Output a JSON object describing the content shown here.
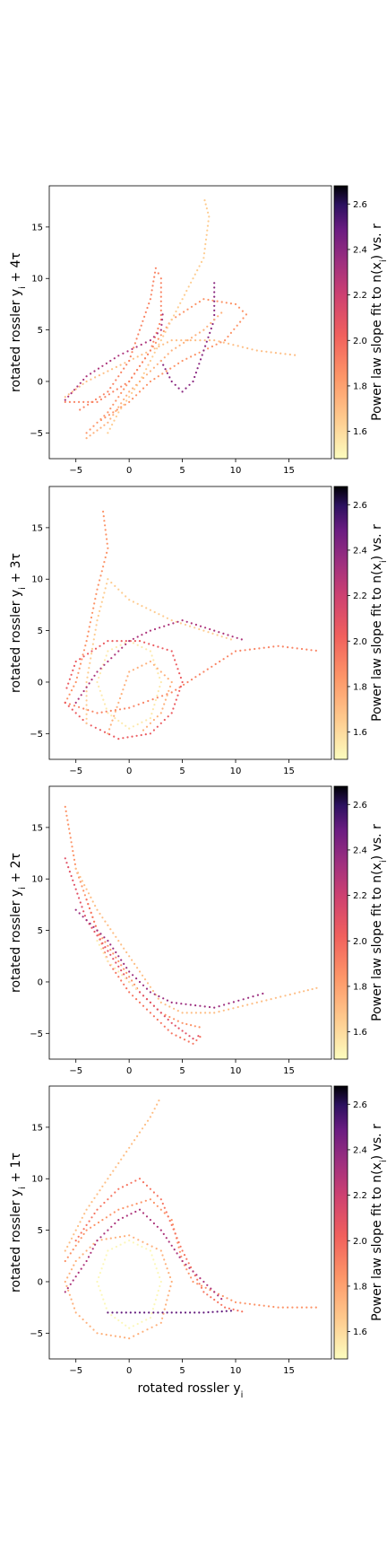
{
  "chart_data": [
    {
      "type": "scatter",
      "xlabel": "",
      "ylabel": "rotated rossler y_i + 4τ",
      "xlim": [
        -7.5,
        19
      ],
      "ylim": [
        -7.5,
        19
      ],
      "xticks": [
        -5,
        0,
        5,
        10,
        15
      ],
      "yticks": [
        -5,
        0,
        5,
        10,
        15
      ],
      "colorbar": {
        "label": "Power law slope fit to n(x_i) vs. r",
        "ticks": [
          1.6,
          1.8,
          2.0,
          2.2,
          2.4,
          2.6
        ],
        "range": [
          1.48,
          2.68
        ],
        "colormap": "magma_r"
      },
      "series": [
        {
          "curve": [
            [
              -6,
              -1.5
            ],
            [
              -4,
              0
            ],
            [
              0,
              2
            ],
            [
              4,
              4
            ],
            [
              8,
              4
            ],
            [
              12,
              3
            ],
            [
              16,
              2.5
            ]
          ],
          "color": 1.7
        },
        {
          "curve": [
            [
              -4,
              -5
            ],
            [
              -2,
              -3
            ],
            [
              0,
              0
            ],
            [
              2,
              3
            ],
            [
              4,
              6
            ],
            [
              7,
              8
            ],
            [
              10,
              7.5
            ],
            [
              11,
              6.5
            ],
            [
              9,
              4
            ],
            [
              5,
              2
            ],
            [
              2,
              0
            ],
            [
              0,
              -2
            ],
            [
              -3,
              -4
            ]
          ],
          "color": 1.85
        },
        {
          "curve": [
            [
              -6,
              -2
            ],
            [
              -3,
              -2
            ],
            [
              0,
              0
            ],
            [
              2,
              3
            ],
            [
              3,
              6
            ],
            [
              3,
              10
            ],
            [
              2.5,
              11
            ],
            [
              2,
              8
            ],
            [
              1,
              5
            ],
            [
              0,
              2
            ],
            [
              -2,
              -1
            ],
            [
              -5,
              -3
            ]
          ],
          "color": 1.9
        },
        {
          "curve": [
            [
              -2,
              -5
            ],
            [
              -1,
              -3
            ],
            [
              1,
              0
            ],
            [
              3,
              4
            ],
            [
              5,
              8
            ],
            [
              7,
              12
            ],
            [
              7.5,
              16
            ],
            [
              7,
              18
            ]
          ],
          "color": 1.65
        },
        {
          "curve": [
            [
              -6,
              -1.8
            ],
            [
              -4,
              0.5
            ],
            [
              -1,
              2.5
            ],
            [
              2,
              4
            ],
            [
              3,
              5
            ],
            [
              3.2,
              7
            ]
          ],
          "color": 2.3
        },
        {
          "curve": [
            [
              3,
              2
            ],
            [
              4,
              0
            ],
            [
              5,
              -1
            ],
            [
              6,
              0
            ],
            [
              7,
              3
            ],
            [
              8,
              6
            ],
            [
              8,
              10
            ]
          ],
          "color": 2.4
        },
        {
          "curve": [
            [
              -4,
              -5.5
            ],
            [
              -2,
              -4
            ],
            [
              0,
              -1
            ],
            [
              2,
              1
            ],
            [
              4,
              3
            ],
            [
              7,
              5
            ],
            [
              9,
              7
            ]
          ],
          "color": 1.75
        }
      ]
    },
    {
      "type": "scatter",
      "xlabel": "",
      "ylabel": "rotated rossler y_i + 3τ",
      "xlim": [
        -7.5,
        19
      ],
      "ylim": [
        -7.5,
        19
      ],
      "xticks": [
        -5,
        0,
        5,
        10,
        15
      ],
      "yticks": [
        -5,
        0,
        5,
        10,
        15
      ],
      "colorbar": {
        "label": "Power law slope fit to n(x_i) vs. r",
        "ticks": [
          1.6,
          1.8,
          2.0,
          2.2,
          2.4,
          2.6
        ],
        "range": [
          1.48,
          2.68
        ],
        "colormap": "magma_r"
      },
      "series": [
        {
          "curve": [
            [
              -6,
              -2
            ],
            [
              -5,
              0
            ],
            [
              -4,
              4
            ],
            [
              -3,
              9
            ],
            [
              -2,
              13
            ],
            [
              -2.5,
              17
            ]
          ],
          "color": 1.85
        },
        {
          "curve": [
            [
              -6,
              -2
            ],
            [
              -3,
              -3
            ],
            [
              0,
              -2.5
            ],
            [
              4,
              -1
            ],
            [
              7,
              1
            ],
            [
              10,
              3
            ],
            [
              14,
              3.5
            ],
            [
              18,
              3
            ]
          ],
          "color": 1.9
        },
        {
          "curve": [
            [
              -6,
              -2
            ],
            [
              -4,
              -4
            ],
            [
              -1,
              -5.5
            ],
            [
              2,
              -5
            ],
            [
              4,
              -3
            ],
            [
              5,
              0
            ],
            [
              4,
              3
            ],
            [
              1,
              4
            ],
            [
              -2,
              4
            ],
            [
              -5,
              2
            ],
            [
              -6,
              -1
            ]
          ],
          "color": 2.05
        },
        {
          "curve": [
            [
              -3,
              0
            ],
            [
              -2,
              -3
            ],
            [
              0,
              -4.5
            ],
            [
              2,
              -3.5
            ],
            [
              3,
              0
            ],
            [
              2,
              3
            ],
            [
              0,
              4
            ],
            [
              -2,
              3
            ],
            [
              -3,
              0
            ]
          ],
          "color": 1.55
        },
        {
          "curve": [
            [
              -4,
              -4
            ],
            [
              -4,
              0
            ],
            [
              -3,
              6
            ],
            [
              -2,
              10
            ],
            [
              0,
              8
            ],
            [
              4,
              6
            ],
            [
              7,
              5
            ],
            [
              10,
              4
            ]
          ],
          "color": 1.65
        },
        {
          "curve": [
            [
              -5,
              -2
            ],
            [
              -3,
              1
            ],
            [
              0,
              4
            ],
            [
              2,
              5
            ],
            [
              5,
              6
            ],
            [
              8,
              5
            ],
            [
              11,
              4
            ]
          ],
          "color": 2.3
        },
        {
          "curve": [
            [
              -2,
              -5
            ],
            [
              -1,
              -2
            ],
            [
              0,
              1
            ],
            [
              2,
              2
            ],
            [
              4,
              0
            ],
            [
              3,
              -3
            ],
            [
              1,
              -5
            ]
          ],
          "color": 1.75
        }
      ]
    },
    {
      "type": "scatter",
      "xlabel": "",
      "ylabel": "rotated rossler y_i + 2τ",
      "xlim": [
        -7.5,
        19
      ],
      "ylim": [
        -7.5,
        19
      ],
      "xticks": [
        -5,
        0,
        5,
        10,
        15
      ],
      "yticks": [
        -5,
        0,
        5,
        10,
        15
      ],
      "colorbar": {
        "label": "Power law slope fit to n(x_i) vs. r",
        "ticks": [
          1.6,
          1.8,
          2.0,
          2.2,
          2.4,
          2.6
        ],
        "range": [
          1.48,
          2.68
        ],
        "colormap": "magma_r"
      },
      "series": [
        {
          "curve": [
            [
              -6,
              17
            ],
            [
              -5.5,
              14
            ],
            [
              -5,
              11
            ],
            [
              -4,
              8
            ],
            [
              -3,
              5
            ],
            [
              -1,
              2
            ],
            [
              1,
              -1
            ],
            [
              3,
              -3
            ],
            [
              5,
              -4
            ],
            [
              7,
              -4.5
            ]
          ],
          "color": 1.85
        },
        {
          "curve": [
            [
              -6,
              12
            ],
            [
              -5,
              9
            ],
            [
              -4,
              6
            ],
            [
              -2,
              3
            ],
            [
              0,
              0
            ],
            [
              2,
              -2
            ],
            [
              4,
              -4
            ],
            [
              6,
              -5.5
            ],
            [
              7,
              -5
            ]
          ],
          "color": 2.1
        },
        {
          "curve": [
            [
              -5,
              11
            ],
            [
              -4,
              9
            ],
            [
              -3,
              7
            ],
            [
              -1,
              4
            ],
            [
              1,
              1
            ],
            [
              3,
              -2
            ],
            [
              5,
              -3
            ],
            [
              8,
              -3
            ],
            [
              12,
              -2
            ],
            [
              16,
              -1
            ],
            [
              18,
              -0.5
            ]
          ],
          "color": 1.7
        },
        {
          "curve": [
            [
              -4,
              8
            ],
            [
              -3,
              5
            ],
            [
              -2,
              2
            ],
            [
              0,
              -1
            ],
            [
              2,
              -3
            ],
            [
              4,
              -5
            ],
            [
              6,
              -6
            ],
            [
              7,
              -5
            ]
          ],
          "color": 1.95
        },
        {
          "curve": [
            [
              -5,
              7
            ],
            [
              -4,
              6
            ],
            [
              -2,
              4
            ],
            [
              0,
              1
            ],
            [
              2,
              -1
            ],
            [
              4,
              -2
            ],
            [
              8,
              -2.5
            ],
            [
              13,
              -1
            ]
          ],
          "color": 2.35
        },
        {
          "curve": [
            [
              -3,
              4
            ],
            [
              -2,
              2
            ],
            [
              -1,
              1
            ],
            [
              0,
              0
            ],
            [
              1,
              -1
            ]
          ],
          "color": 1.55
        }
      ]
    },
    {
      "type": "scatter",
      "xlabel": "rotated rossler y_i",
      "ylabel": "rotated rossler y_i + 1τ",
      "xlim": [
        -7.5,
        19
      ],
      "ylim": [
        -7.5,
        19
      ],
      "xticks": [
        -5,
        0,
        5,
        10,
        15
      ],
      "yticks": [
        -5,
        0,
        5,
        10,
        15
      ],
      "colorbar": {
        "label": "Power law slope fit to n(x_i) vs. r",
        "ticks": [
          1.6,
          1.8,
          2.0,
          2.2,
          2.4,
          2.6
        ],
        "range": [
          1.48,
          2.68
        ],
        "colormap": "magma_r"
      },
      "series": [
        {
          "curve": [
            [
              -6,
              0
            ],
            [
              -5,
              -3
            ],
            [
              -3,
              -5
            ],
            [
              0,
              -5.5
            ],
            [
              3,
              -4
            ],
            [
              4,
              0
            ],
            [
              3,
              3
            ],
            [
              0,
              4.5
            ],
            [
              -3,
              4
            ],
            [
              -5,
              2
            ],
            [
              -6,
              0
            ]
          ],
          "color": 1.75
        },
        {
          "curve": [
            [
              -3,
              0
            ],
            [
              -2,
              -3
            ],
            [
              0,
              -4.5
            ],
            [
              2,
              -3.5
            ],
            [
              3,
              0
            ],
            [
              2,
              3
            ],
            [
              0,
              4
            ],
            [
              -2,
              3
            ],
            [
              -3,
              0
            ]
          ],
          "color": 1.5
        },
        {
          "curve": [
            [
              -6,
              3
            ],
            [
              -4,
              7
            ],
            [
              -2,
              10
            ],
            [
              0,
              13
            ],
            [
              2,
              16
            ],
            [
              3,
              18
            ]
          ],
          "color": 1.7
        },
        {
          "curve": [
            [
              -6,
              2
            ],
            [
              -4,
              5
            ],
            [
              -1,
              7
            ],
            [
              2,
              8
            ],
            [
              4,
              6
            ],
            [
              5,
              2
            ],
            [
              6,
              0
            ],
            [
              8,
              -1
            ],
            [
              10,
              -2
            ],
            [
              14,
              -2.5
            ],
            [
              18,
              -2.5
            ]
          ],
          "color": 1.85
        },
        {
          "curve": [
            [
              -5,
              4
            ],
            [
              -3,
              7
            ],
            [
              -1,
              9
            ],
            [
              1,
              10
            ],
            [
              3,
              8
            ],
            [
              5,
              3
            ],
            [
              7,
              -1
            ],
            [
              9,
              -2.5
            ],
            [
              11,
              -3
            ]
          ],
          "color": 1.95
        },
        {
          "curve": [
            [
              -6,
              -1
            ],
            [
              -4,
              2
            ],
            [
              -3,
              4
            ],
            [
              -1,
              6
            ],
            [
              1,
              7
            ],
            [
              3,
              5
            ],
            [
              5,
              2
            ],
            [
              7,
              0
            ],
            [
              9,
              -2
            ]
          ],
          "color": 2.3
        },
        {
          "curve": [
            [
              -2,
              -3
            ],
            [
              1,
              -3
            ],
            [
              4,
              -3
            ],
            [
              7,
              -3
            ],
            [
              10,
              -2.8
            ]
          ],
          "color": 2.5
        }
      ]
    }
  ]
}
